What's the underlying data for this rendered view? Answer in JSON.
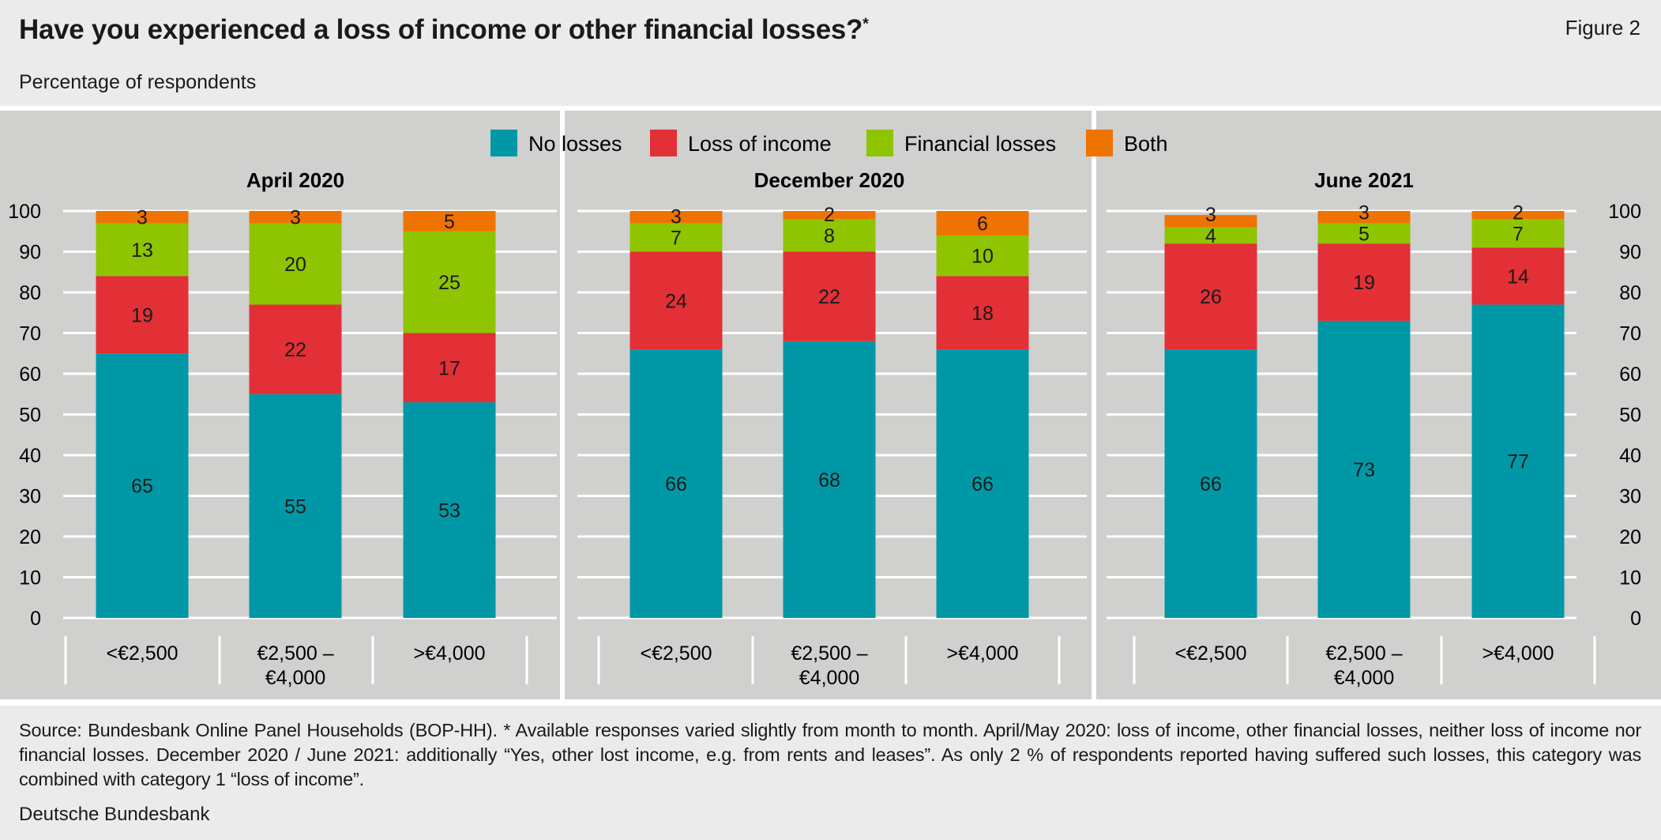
{
  "header": {
    "title": "Have you experienced a loss of income or other financial losses?",
    "title_marker": "*",
    "figure_label": "Figure 2",
    "subtitle": "Percentage of respondents"
  },
  "footer": {
    "note": "Source: Bundesbank Online Panel Households (BOP-HH). * Available responses varied slightly from month to month. April/May 2020: loss of income, other financial losses, neither loss of income nor financial losses. December 2020 / June 2021: additionally “Yes, other lost income, e.g. from rents and leases”. As only 2 % of respondents reported having suffered such losses, this category was combined with category 1 “loss of income”.",
    "credit": "Deutsche Bundesbank"
  },
  "chart_data": {
    "type": "bar",
    "stacked": true,
    "ylim": [
      0,
      100
    ],
    "yticks": [
      0,
      10,
      20,
      30,
      40,
      50,
      60,
      70,
      80,
      90,
      100
    ],
    "grid": true,
    "legend_placement": "top-center",
    "legend": [
      {
        "name": "No losses",
        "color": "#0098a6"
      },
      {
        "name": "Loss of income",
        "color": "#e32f36"
      },
      {
        "name": "Financial losses",
        "color": "#8fc400"
      },
      {
        "name": "Both",
        "color": "#ef7300"
      }
    ],
    "categories": [
      [
        "<€2,500"
      ],
      [
        "€2,500 –",
        "€4,000"
      ],
      [
        ">€4,000"
      ]
    ],
    "panels": [
      {
        "title": "April 2020",
        "series": [
          {
            "name": "No losses",
            "values": [
              65,
              55,
              53
            ]
          },
          {
            "name": "Loss of income",
            "values": [
              19,
              22,
              17
            ]
          },
          {
            "name": "Financial losses",
            "values": [
              13,
              20,
              25
            ]
          },
          {
            "name": "Both",
            "values": [
              3,
              3,
              5
            ]
          }
        ]
      },
      {
        "title": "December 2020",
        "series": [
          {
            "name": "No losses",
            "values": [
              66,
              68,
              66
            ]
          },
          {
            "name": "Loss of income",
            "values": [
              24,
              22,
              18
            ]
          },
          {
            "name": "Financial losses",
            "values": [
              7,
              8,
              10
            ]
          },
          {
            "name": "Both",
            "values": [
              3,
              2,
              6
            ]
          }
        ]
      },
      {
        "title": "June 2021",
        "series": [
          {
            "name": "No losses",
            "values": [
              66,
              73,
              77
            ]
          },
          {
            "name": "Loss of income",
            "values": [
              26,
              19,
              14
            ]
          },
          {
            "name": "Financial losses",
            "values": [
              4,
              5,
              7
            ]
          },
          {
            "name": "Both",
            "values": [
              3,
              3,
              2
            ]
          }
        ]
      }
    ]
  }
}
